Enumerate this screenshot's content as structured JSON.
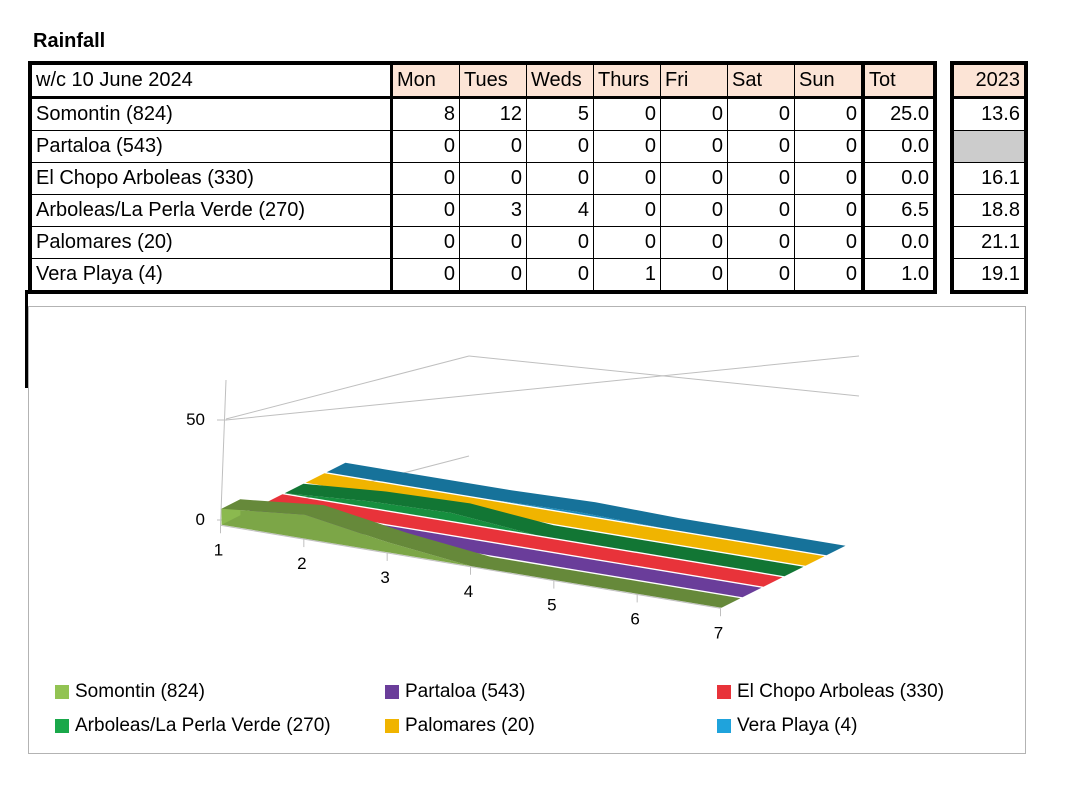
{
  "title": "Rainfall",
  "table": {
    "week_label": "w/c  10 June 2024",
    "days": [
      "Mon",
      "Tues",
      "Weds",
      "Thurs",
      "Fri",
      "Sat",
      "Sun"
    ],
    "tot_label": "Tot",
    "year_label": "2023",
    "rows": [
      {
        "name": "Somontin (824)",
        "values": [
          "8",
          "12",
          "5",
          "0",
          "0",
          "0",
          "0"
        ],
        "tot": "25.0",
        "y2023": "13.6"
      },
      {
        "name": "Partaloa (543)",
        "values": [
          "0",
          "0",
          "0",
          "0",
          "0",
          "0",
          "0"
        ],
        "tot": "0.0",
        "y2023": ""
      },
      {
        "name": "El Chopo Arboleas (330)",
        "values": [
          "0",
          "0",
          "0",
          "0",
          "0",
          "0",
          "0"
        ],
        "tot": "0.0",
        "y2023": "16.1"
      },
      {
        "name": "Arboleas/La Perla Verde (270)",
        "values": [
          "0",
          "3",
          "4",
          "0",
          "0",
          "0",
          "0"
        ],
        "tot": "6.5",
        "y2023": "18.8"
      },
      {
        "name": "Palomares (20)",
        "values": [
          "0",
          "0",
          "0",
          "0",
          "0",
          "0",
          "0"
        ],
        "tot": "0.0",
        "y2023": "21.1"
      },
      {
        "name": "Vera Playa (4)",
        "values": [
          "0",
          "0",
          "0",
          "1",
          "0",
          "0",
          "0"
        ],
        "tot": "1.0",
        "y2023": "19.1"
      }
    ]
  },
  "chart_data": {
    "type": "area",
    "x": [
      "1",
      "2",
      "3",
      "4",
      "5",
      "6",
      "7"
    ],
    "y_ticks": [
      "0",
      "50"
    ],
    "ylim": [
      0,
      50
    ],
    "legend_position": "bottom",
    "series": [
      {
        "name": "Somontin (824)",
        "values": [
          8,
          12,
          5,
          0,
          0,
          0,
          0
        ],
        "color": "#92c353"
      },
      {
        "name": "Partaloa (543)",
        "values": [
          0,
          0,
          0,
          0,
          0,
          0,
          0
        ],
        "color": "#6a3d9a"
      },
      {
        "name": "El Chopo Arboleas (330)",
        "values": [
          0,
          0,
          0,
          0,
          0,
          0,
          0
        ],
        "color": "#e8333a"
      },
      {
        "name": "Arboleas/La Perla Verde (270)",
        "values": [
          0,
          3,
          4,
          0,
          0,
          0,
          0
        ],
        "color": "#1aa84a"
      },
      {
        "name": "Palomares (20)",
        "values": [
          0,
          0,
          0,
          0,
          0,
          0,
          0
        ],
        "color": "#f0b400"
      },
      {
        "name": "Vera Playa (4)",
        "values": [
          0,
          0,
          0,
          1,
          0,
          0,
          0
        ],
        "color": "#1fa3dc"
      }
    ]
  }
}
